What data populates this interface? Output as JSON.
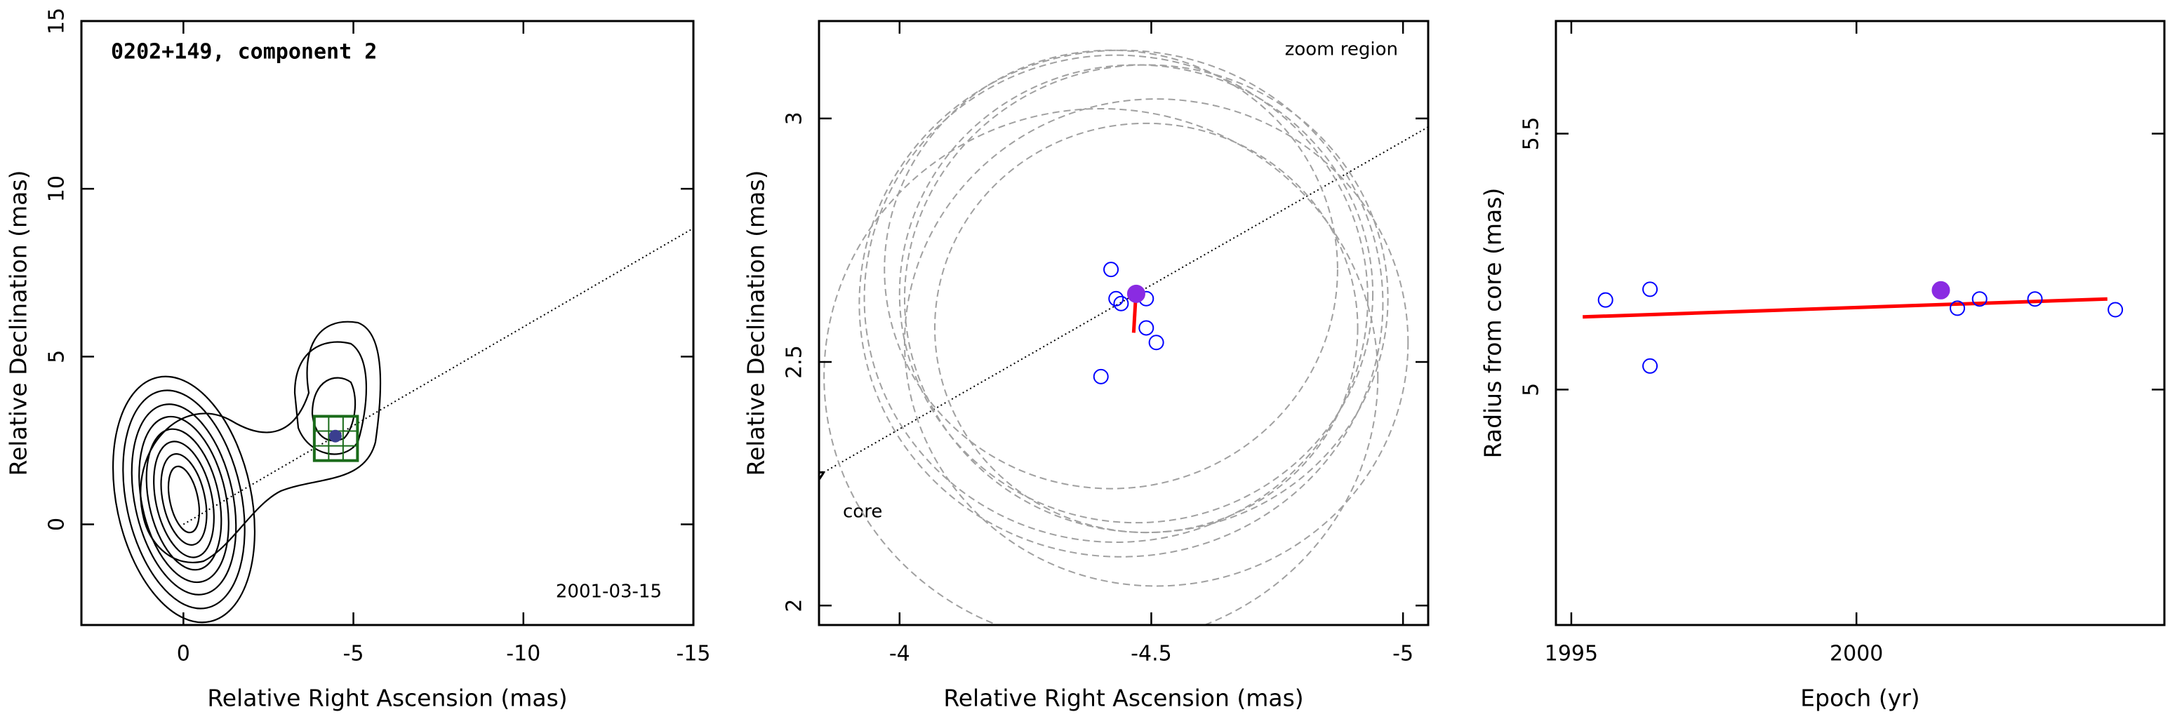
{
  "chart_data": [
    {
      "type": "contour",
      "title": "0202+149, component 2",
      "date_label": "2001-03-15",
      "x_label": "Relative Right Ascension (mas)",
      "y_label": "Relative Declination (mas)",
      "xlim": [
        3,
        -15
      ],
      "ylim": [
        -3,
        15
      ],
      "xticks": [
        0,
        -5,
        -10,
        -15
      ],
      "yticks": [
        0,
        5,
        10,
        15
      ],
      "component": {
        "x": -4.47,
        "y": 2.63,
        "color": "#3a3f8f"
      },
      "zoom_box": {
        "xlim": [
          -3.85,
          -5.12
        ],
        "ylim": [
          1.9,
          3.22
        ],
        "color": "#1a6b1a"
      }
    },
    {
      "type": "scatter",
      "annotations": [
        "zoom region",
        "core"
      ],
      "x_label": "Relative Right Ascension (mas)",
      "y_label": "Relative Declination (mas)",
      "xlim": [
        -3.84,
        -5.05
      ],
      "ylim": [
        1.96,
        3.2
      ],
      "xticks": [
        -4,
        -4.5,
        -5
      ],
      "yticks": [
        2,
        2.5,
        3
      ],
      "series": [
        {
          "color": "#0000ff",
          "marker": "open",
          "x": [
            -4.42,
            -4.43,
            -4.44,
            -4.49,
            -4.49,
            -4.51,
            -4.4
          ],
          "y": [
            2.69,
            2.63,
            2.62,
            2.63,
            2.57,
            2.54,
            2.47
          ],
          "sizes": [
            0.45,
            0.5,
            0.52,
            0.48,
            0.42,
            0.5,
            0.55
          ]
        },
        {
          "color": "#8a2be2",
          "marker": "filled",
          "x": [
            -4.47
          ],
          "y": [
            2.64
          ],
          "sizes": [
            0.47
          ]
        }
      ],
      "vector": {
        "color": "#ff0000",
        "x": [
          -4.47,
          -4.465
        ],
        "y": [
          2.65,
          2.56
        ]
      }
    },
    {
      "type": "scatter",
      "x_label": "Epoch (yr)",
      "y_label": "Radius from core (mas)",
      "xlim": [
        1994.73,
        2005.4
      ],
      "ylim": [
        4.54,
        5.72
      ],
      "xticks": [
        1995,
        2000
      ],
      "yticks": [
        5,
        5.5
      ],
      "series": [
        {
          "color": "#0000ff",
          "marker": "open",
          "x": [
            1995.6,
            1996.38,
            1996.38,
            2001.77,
            2002.16,
            2003.13,
            2004.54
          ],
          "y": [
            5.175,
            5.196,
            5.046,
            5.159,
            5.177,
            5.177,
            5.156
          ]
        },
        {
          "color": "#8a2be2",
          "marker": "filled",
          "x": [
            2001.48
          ],
          "y": [
            5.194
          ]
        }
      ],
      "fit": {
        "color": "#ff0000",
        "x": [
          1995.2,
          2004.4
        ],
        "y": [
          5.142,
          5.177
        ]
      }
    }
  ]
}
